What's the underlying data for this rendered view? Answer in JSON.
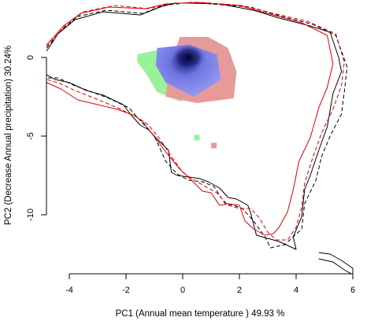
{
  "chart_data": {
    "type": "scatter",
    "title": "",
    "xlabel": "PC1 (Annual mean temperature ) 49.93 %",
    "ylabel": "PC2 (Decrease Annual precipitation) 30.24%",
    "xlim": [
      -4.8,
      6.0
    ],
    "ylim": [
      -13.8,
      3.4
    ],
    "xticks": [
      -4,
      -2,
      0,
      2,
      4,
      6
    ],
    "yticks": [
      0,
      -5,
      -10
    ],
    "grid": false,
    "legend": "none",
    "colors": {
      "green": "#99f299",
      "red": "#e79a9a",
      "blue": "#8f95ef",
      "core": "#00003a",
      "black_line": "#000000",
      "red_line": "#dd0000"
    },
    "occurrence_density": {
      "green": {
        "outline": [
          [
            -1.6,
            0.2
          ],
          [
            -0.8,
            0.5
          ],
          [
            0.3,
            0.6
          ],
          [
            1.4,
            0.2
          ],
          [
            1.1,
            -2.0
          ],
          [
            -0.1,
            -2.8
          ],
          [
            -0.9,
            -2.2
          ],
          [
            -1.3,
            -1.0
          ],
          [
            -1.6,
            -0.3
          ]
        ],
        "outliers": [
          [
            0.5,
            -5.1
          ]
        ]
      },
      "red": {
        "outline": [
          [
            -0.1,
            1.3
          ],
          [
            0.9,
            1.3
          ],
          [
            1.6,
            0.6
          ],
          [
            1.9,
            -0.9
          ],
          [
            1.8,
            -2.6
          ],
          [
            0.5,
            -2.9
          ],
          [
            -0.6,
            -2.5
          ],
          [
            -0.5,
            -1.0
          ],
          [
            -0.3,
            0.3
          ]
        ],
        "outliers": [
          [
            1.1,
            -5.6
          ]
        ]
      },
      "blue": {
        "outline": [
          [
            -0.9,
            0.6
          ],
          [
            0.2,
            0.8
          ],
          [
            1.2,
            0.2
          ],
          [
            1.35,
            -1.4
          ],
          [
            0.4,
            -2.5
          ],
          [
            -0.6,
            -1.6
          ],
          [
            -0.95,
            -0.5
          ]
        ]
      },
      "density_peak": [
        0.2,
        0.0
      ]
    },
    "environment_envelopes": [
      {
        "color": "black",
        "style": "solid",
        "points": [
          [
            -4.8,
            0.4
          ],
          [
            -4.4,
            1.5
          ],
          [
            -3.8,
            2.4
          ],
          [
            -2.8,
            2.9
          ],
          [
            -1.5,
            2.7
          ],
          [
            -0.8,
            3.2
          ],
          [
            -0.3,
            3.45
          ],
          [
            0.3,
            3.45
          ],
          [
            1.3,
            3.4
          ],
          [
            2.2,
            3.1
          ],
          [
            2.6,
            2.95
          ],
          [
            3.4,
            2.5
          ],
          [
            4.5,
            2.0
          ],
          [
            5.2,
            1.6
          ],
          [
            5.5,
            0.0
          ],
          [
            5.6,
            -0.9
          ],
          [
            5.3,
            -2.3
          ],
          [
            5.1,
            -4.4
          ],
          [
            4.8,
            -5.9
          ],
          [
            4.5,
            -7.5
          ],
          [
            4.3,
            -8.4
          ],
          [
            4.2,
            -10.1
          ],
          [
            3.9,
            -11.4
          ],
          [
            4.0,
            -12.2
          ],
          [
            3.4,
            -11.7
          ],
          [
            2.6,
            -11.3
          ],
          [
            2.4,
            -9.9
          ],
          [
            2.3,
            -9.4
          ],
          [
            1.9,
            -9.0
          ],
          [
            1.6,
            -8.9
          ],
          [
            1.3,
            -8.3
          ],
          [
            0.9,
            -7.9
          ],
          [
            0.6,
            -7.7
          ],
          [
            -0.2,
            -7.5
          ],
          [
            -0.4,
            -7.3
          ],
          [
            -0.5,
            -5.9
          ],
          [
            -0.9,
            -5.2
          ],
          [
            -1.2,
            -4.6
          ],
          [
            -1.5,
            -4.3
          ],
          [
            -1.8,
            -3.7
          ],
          [
            -2.1,
            -3.0
          ],
          [
            -2.8,
            -2.4
          ],
          [
            -3.4,
            -2.1
          ],
          [
            -4.0,
            -1.6
          ],
          [
            -4.5,
            -1.4
          ],
          [
            -4.8,
            -1.1
          ]
        ]
      },
      {
        "color": "black",
        "style": "dashed",
        "points": [
          [
            -4.8,
            0.6
          ],
          [
            -4.3,
            1.7
          ],
          [
            -3.7,
            2.6
          ],
          [
            -2.7,
            3.0
          ],
          [
            -1.4,
            2.8
          ],
          [
            -0.7,
            3.3
          ],
          [
            0.3,
            3.5
          ],
          [
            2.4,
            3.2
          ],
          [
            3.5,
            2.6
          ],
          [
            4.6,
            2.1
          ],
          [
            5.4,
            1.4
          ],
          [
            5.8,
            -0.6
          ],
          [
            5.7,
            -2.2
          ],
          [
            5.6,
            -3.6
          ],
          [
            5.2,
            -5.0
          ],
          [
            4.9,
            -6.3
          ],
          [
            4.7,
            -7.8
          ],
          [
            4.3,
            -9.3
          ],
          [
            4.2,
            -10.9
          ],
          [
            3.6,
            -11.9
          ],
          [
            3.1,
            -12.1
          ],
          [
            2.9,
            -11.4
          ],
          [
            2.5,
            -10.4
          ],
          [
            2.1,
            -9.6
          ],
          [
            1.8,
            -9.4
          ],
          [
            1.5,
            -9.3
          ],
          [
            1.1,
            -8.2
          ],
          [
            0.7,
            -7.9
          ],
          [
            0.2,
            -7.8
          ],
          [
            -0.2,
            -7.4
          ],
          [
            -0.6,
            -6.6
          ],
          [
            -1.0,
            -5.0
          ],
          [
            -1.4,
            -4.2
          ],
          [
            -1.9,
            -3.2
          ],
          [
            -2.6,
            -2.6
          ],
          [
            -3.2,
            -2.2
          ],
          [
            -3.8,
            -1.8
          ],
          [
            -4.4,
            -1.3
          ],
          [
            -4.8,
            -1.3
          ]
        ]
      },
      {
        "color": "red",
        "style": "solid",
        "points": [
          [
            -4.8,
            0.8
          ],
          [
            -4.2,
            2.0
          ],
          [
            -3.6,
            2.8
          ],
          [
            -2.6,
            3.2
          ],
          [
            -1.3,
            3.1
          ],
          [
            -0.6,
            3.4
          ],
          [
            0.5,
            3.5
          ],
          [
            2.0,
            3.3
          ],
          [
            3.0,
            2.8
          ],
          [
            4.2,
            2.2
          ],
          [
            5.1,
            1.4
          ],
          [
            5.3,
            -0.4
          ],
          [
            5.1,
            -1.9
          ],
          [
            4.8,
            -3.2
          ],
          [
            4.5,
            -5.1
          ],
          [
            4.1,
            -6.6
          ],
          [
            3.9,
            -8.4
          ],
          [
            3.7,
            -9.8
          ],
          [
            3.4,
            -10.8
          ],
          [
            3.2,
            -11.2
          ],
          [
            2.9,
            -11.3
          ],
          [
            2.5,
            -10.9
          ],
          [
            2.2,
            -10.4
          ],
          [
            2.0,
            -9.4
          ],
          [
            1.6,
            -9.3
          ],
          [
            1.3,
            -9.4
          ],
          [
            1.0,
            -8.6
          ],
          [
            0.7,
            -8.5
          ],
          [
            0.2,
            -7.6
          ],
          [
            -0.1,
            -7.1
          ],
          [
            -0.6,
            -6.0
          ],
          [
            -1.1,
            -4.8
          ],
          [
            -1.4,
            -4.1
          ],
          [
            -1.7,
            -3.7
          ],
          [
            -2.3,
            -3.3
          ],
          [
            -3.0,
            -3.0
          ],
          [
            -3.7,
            -2.7
          ],
          [
            -4.3,
            -2.0
          ],
          [
            -4.8,
            -1.6
          ]
        ]
      },
      {
        "color": "red",
        "style": "dashed",
        "points": [
          [
            -4.8,
            0.7
          ],
          [
            -4.1,
            2.1
          ],
          [
            -3.5,
            2.9
          ],
          [
            -2.4,
            3.3
          ],
          [
            -1.2,
            3.1
          ],
          [
            -0.5,
            3.4
          ],
          [
            0.6,
            3.5
          ],
          [
            2.1,
            3.3
          ],
          [
            3.2,
            2.8
          ],
          [
            4.4,
            2.3
          ],
          [
            5.4,
            1.5
          ],
          [
            5.7,
            -0.3
          ],
          [
            5.6,
            -1.8
          ],
          [
            5.3,
            -3.3
          ],
          [
            4.9,
            -4.8
          ],
          [
            4.6,
            -6.3
          ],
          [
            4.3,
            -8.0
          ],
          [
            4.2,
            -9.5
          ],
          [
            4.0,
            -10.8
          ],
          [
            3.7,
            -11.6
          ],
          [
            3.3,
            -11.6
          ],
          [
            3.0,
            -11.1
          ],
          [
            2.7,
            -10.2
          ],
          [
            2.4,
            -9.6
          ],
          [
            2.0,
            -9.6
          ],
          [
            1.6,
            -9.4
          ],
          [
            1.2,
            -8.6
          ],
          [
            0.9,
            -8.3
          ],
          [
            0.4,
            -7.8
          ],
          [
            0.0,
            -7.3
          ],
          [
            -0.4,
            -6.3
          ],
          [
            -0.8,
            -5.2
          ],
          [
            -1.2,
            -4.3
          ],
          [
            -1.6,
            -3.8
          ],
          [
            -2.3,
            -3.2
          ],
          [
            -3.1,
            -2.6
          ],
          [
            -3.8,
            -2.1
          ],
          [
            -4.4,
            -1.6
          ],
          [
            -4.8,
            -1.4
          ]
        ]
      },
      {
        "color": "black",
        "style": "solid",
        "points": [
          [
            4.8,
            -12.4
          ],
          [
            5.2,
            -12.5
          ],
          [
            5.6,
            -12.9
          ],
          [
            6.0,
            -13.4
          ],
          [
            6.0,
            -13.8
          ],
          [
            5.7,
            -13.5
          ],
          [
            5.3,
            -13.0
          ],
          [
            4.8,
            -12.8
          ]
        ]
      }
    ]
  }
}
